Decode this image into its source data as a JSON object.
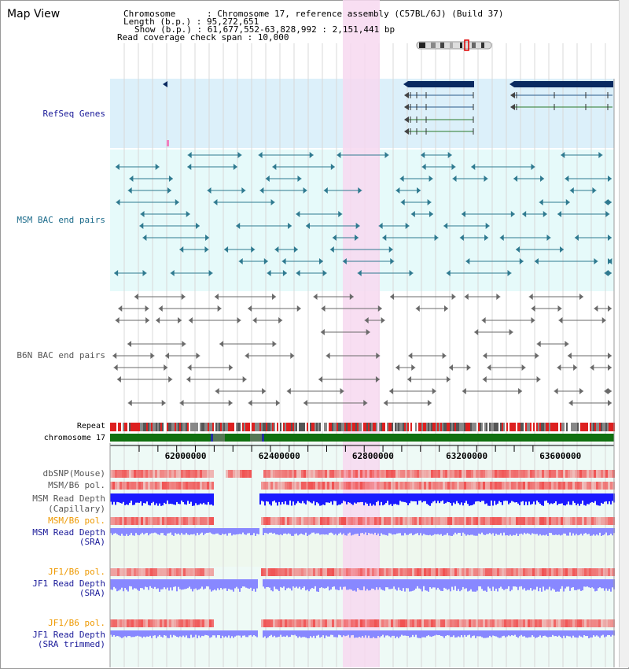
{
  "view": {
    "title": "Map View",
    "info_lines": [
      "Chromosome      : Chromosome 17, reference assembly (C57BL/6J) (Build 37)",
      "Length (b.p.) : 95,272,651",
      "Show (b.p.) : 61,677,552-63,828,992 : 2,151,441 bp",
      "Read coverage check span : 10,000"
    ]
  },
  "tracks": {
    "refseq": "RefSeq Genes",
    "msm_bac": "MSM BAC end pairs",
    "b6n_bac": "B6N BAC end pairs",
    "repeat": "Repeat",
    "chromosome": "chromosome 17",
    "dbsnp": "dbSNP(Mouse)",
    "msm_b6_pol_cap": "MSM/B6 pol.",
    "msm_depth_cap_1": "MSM Read Depth",
    "msm_depth_cap_2": "(Capillary)",
    "msm_b6_pol_sra": "MSM/B6 pol.",
    "msm_depth_sra_1": "MSM Read Depth",
    "msm_depth_sra_2": "(SRA)",
    "jf1_b6_pol": "JF1/B6 pol.",
    "jf1_depth_1": "JF1 Read Depth",
    "jf1_depth_2": "(SRA)",
    "jf1_b6_pol_t": "JF1/B6 pol.",
    "jf1_depth_t_1": "JF1 Read Depth",
    "jf1_depth_t_2": "(SRA trimmed)"
  },
  "axis": {
    "ticks": [
      "62000000",
      "62400000",
      "62800000",
      "63200000",
      "63600000"
    ],
    "range": [
      61677552,
      63828992
    ]
  },
  "colors": {
    "highlight": "#f7d8f0",
    "refseq_bg": "#dcf0fa",
    "msm_bg": "#e6fafa",
    "chrom": "#107010",
    "navy": "#0a2a60",
    "teal": "#2f7a90",
    "gray": "#6a6a6a",
    "depth_blue": "#1a1aff",
    "depth_light": "#8888ff",
    "pol_red": "#f05050",
    "label_navy": "#1a1a99",
    "label_teal": "#1a6a8a",
    "label_orange": "#ee9900"
  }
}
